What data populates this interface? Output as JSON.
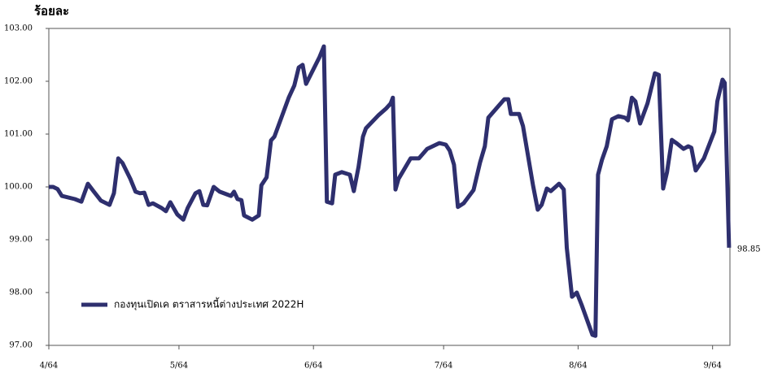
{
  "chart_data": {
    "type": "line",
    "ylabel": "ร้อยละ",
    "x": [
      0,
      1,
      2,
      3,
      6,
      7.5,
      9,
      10.3,
      12,
      14,
      15,
      16,
      17,
      18.8,
      20,
      21,
      22,
      23,
      24,
      26,
      27,
      28,
      29.6,
      31,
      32,
      33.8,
      34.7,
      35.6,
      36.5,
      38,
      39.4,
      42,
      42.7,
      43.5,
      44.4,
      45,
      46.9,
      48.4,
      49,
      50.2,
      51.2,
      52,
      55.3,
      56.6,
      57.6,
      58.5,
      59.3,
      62.4,
      63.4,
      64.1,
      65.3,
      66,
      67.5,
      69.4,
      70.3,
      71.4,
      72.4,
      73.1,
      75.9,
      77.8,
      78.8,
      79.3,
      79.9,
      80.6,
      83.4,
      85.3,
      87.2,
      90,
      91.5,
      92.4,
      93.4,
      94.3,
      95.6,
      97.9,
      99.4,
      100.5,
      101.3,
      105,
      105.9,
      106.5,
      108.4,
      109.3,
      111.6,
      112.7,
      113.6,
      114.8,
      115.7,
      117.6,
      118.7,
      119.4,
      120.6,
      121.7,
      122.8,
      125.3,
      126,
      126.6,
      127.5,
      128.6,
      129.8,
      131.3,
      132.8,
      133.5,
      134.4,
      135.2,
      136.3,
      138,
      139.7,
      140.6,
      141.6,
      142.5,
      143.6,
      144.8,
      146.3,
      147.4,
      148.1,
      149.1,
      151,
      153.4,
      154.1,
      155.3,
      155.8,
      156.8
    ],
    "series": [
      {
        "name": "กองทุนเปิดเค ตราสารหนี้ต่างประเทศ 2022H",
        "color": "#2e2f6e",
        "values": [
          100.0,
          100.0,
          99.96,
          99.83,
          99.77,
          99.72,
          100.06,
          99.92,
          99.74,
          99.66,
          99.88,
          100.54,
          100.45,
          100.15,
          99.91,
          99.88,
          99.89,
          99.66,
          99.69,
          99.6,
          99.54,
          99.71,
          99.48,
          99.38,
          99.6,
          99.88,
          99.92,
          99.66,
          99.65,
          100.0,
          99.91,
          99.83,
          99.91,
          99.77,
          99.75,
          99.46,
          99.38,
          99.46,
          100.03,
          100.18,
          100.88,
          100.95,
          101.69,
          101.92,
          102.26,
          102.31,
          101.95,
          102.46,
          102.66,
          99.72,
          99.69,
          100.23,
          100.28,
          100.23,
          99.92,
          100.38,
          100.95,
          101.11,
          101.35,
          101.49,
          101.58,
          101.69,
          99.95,
          100.15,
          100.54,
          100.54,
          100.72,
          100.83,
          100.8,
          100.69,
          100.42,
          99.62,
          99.69,
          99.94,
          100.46,
          100.77,
          101.31,
          101.66,
          101.66,
          101.38,
          101.38,
          101.15,
          100.03,
          99.57,
          99.66,
          99.97,
          99.92,
          100.06,
          99.95,
          98.85,
          97.92,
          98.0,
          97.77,
          97.2,
          97.18,
          100.23,
          100.51,
          100.77,
          101.28,
          101.34,
          101.31,
          101.26,
          101.69,
          101.62,
          101.2,
          101.58,
          102.15,
          102.12,
          99.97,
          100.28,
          100.89,
          100.82,
          100.72,
          100.77,
          100.74,
          100.31,
          100.54,
          101.05,
          101.62,
          102.03,
          101.97,
          98.85
        ]
      }
    ],
    "xlim": [
      0,
      157
    ],
    "xticks": [
      {
        "value": 0,
        "label": "4/64"
      },
      {
        "value": 30,
        "label": "5/64"
      },
      {
        "value": 61,
        "label": "6/64"
      },
      {
        "value": 91,
        "label": "7/64"
      },
      {
        "value": 122,
        "label": "8/64"
      },
      {
        "value": 153,
        "label": "9/64"
      }
    ],
    "ylim": [
      97,
      103
    ],
    "yticks": [
      {
        "value": 97,
        "label": "97.00"
      },
      {
        "value": 98,
        "label": "98.00"
      },
      {
        "value": 99,
        "label": "99.00"
      },
      {
        "value": 100,
        "label": "100.00"
      },
      {
        "value": 101,
        "label": "101.00"
      },
      {
        "value": 102,
        "label": "102.00"
      },
      {
        "value": 103,
        "label": "103.00"
      }
    ],
    "grid": false,
    "legend": "lower left"
  }
}
